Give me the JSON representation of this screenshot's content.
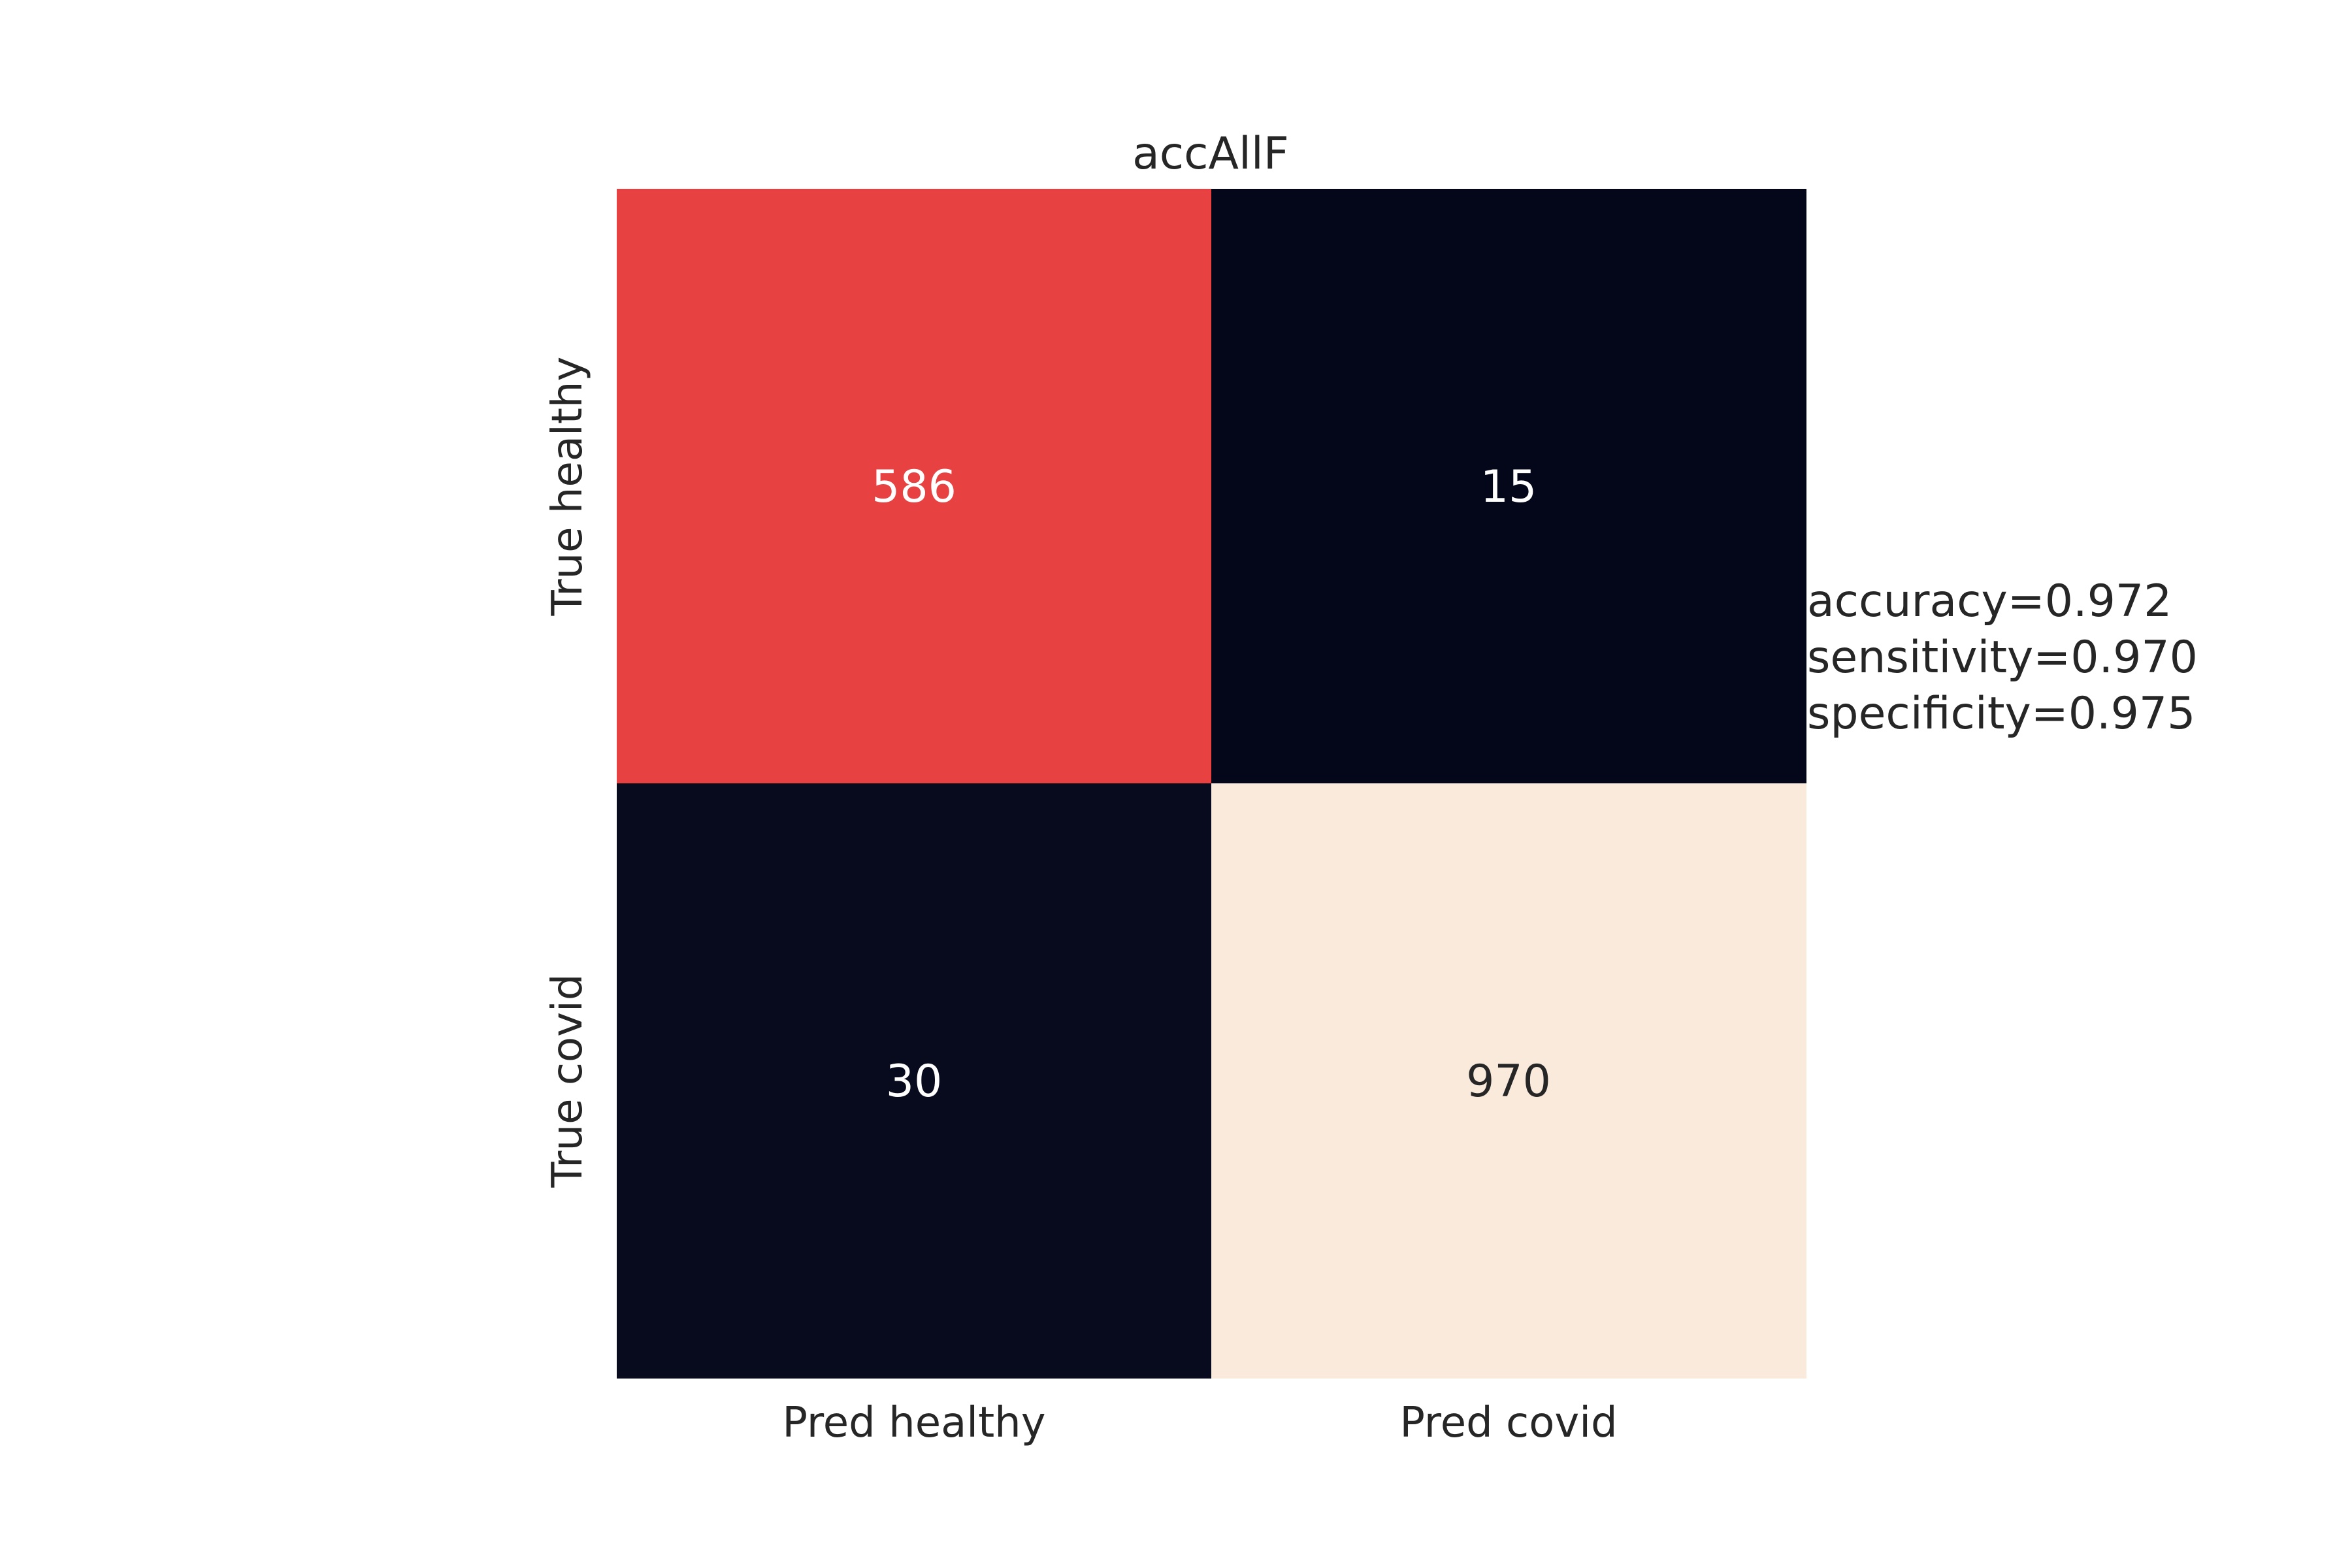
{
  "chart_data": {
    "type": "heatmap",
    "title": "accAllF",
    "x_categories": [
      "Pred healthy",
      "Pred covid"
    ],
    "y_categories": [
      "True healthy",
      "True covid"
    ],
    "values": [
      [
        586,
        15
      ],
      [
        30,
        970
      ]
    ],
    "cell_colors": [
      [
        "#e84141",
        "#040619"
      ],
      [
        "#080a1e",
        "#faeadc"
      ]
    ],
    "label_colors": [
      [
        "#ffffff",
        "#ffffff"
      ],
      [
        "#ffffff",
        "#262626"
      ]
    ],
    "annotations": [
      "accuracy=0.972",
      "sensitivity=0.970",
      "specificity=0.975"
    ],
    "colorbar": false,
    "grid": false
  },
  "colors": {
    "text": "#262626",
    "background": "#ffffff"
  }
}
